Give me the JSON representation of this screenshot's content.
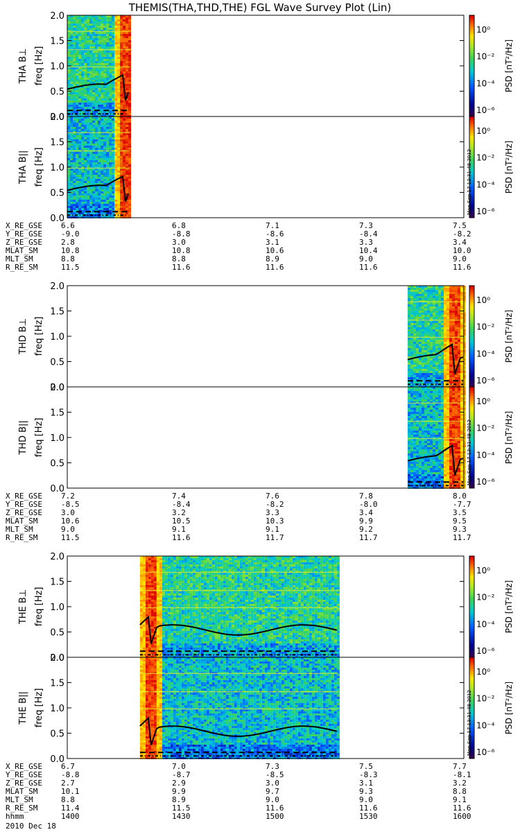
{
  "title": "THEMIS(THA,THD,THE) FGL Wave Survey Plot (Lin)",
  "colorbar": {
    "label": "PSD [nT²/Hz]",
    "ticks": [
      "10⁰",
      "10⁻²",
      "10⁻⁴",
      "10⁻⁶"
    ]
  },
  "stamp": "Mon Sep 17 13:31:48 2012",
  "date_label": "2010 Dec 18",
  "chart_data": [
    {
      "type": "heatmap",
      "probe": "THA",
      "panels": [
        {
          "ylabel": "THA B⊥",
          "unit": "freq [Hz]",
          "yticks": [
            "2.0",
            "1.5",
            "1.0",
            "0.5",
            "0.0"
          ],
          "ylim": [
            0,
            2.0
          ]
        },
        {
          "ylabel": "THA B||",
          "unit": "freq [Hz]",
          "yticks": [
            "2.0",
            "1.5",
            "1.0",
            "0.5",
            "0.0"
          ],
          "ylim": [
            0,
            2.0
          ]
        }
      ],
      "data_time_range_hhmm": [
        "1400",
        "1419"
      ],
      "burst_time_hhmm": "1417",
      "ephemeris": [
        {
          "name": "X_RE_GSE",
          "values": [
            "6.6",
            "6.8",
            "7.1",
            "7.3",
            "7.5"
          ]
        },
        {
          "name": "Y_RE_GSE",
          "values": [
            "-9.0",
            "-8.8",
            "-8.6",
            "-8.4",
            "-8.2"
          ]
        },
        {
          "name": "Z_RE_GSE",
          "values": [
            "2.8",
            "3.0",
            "3.1",
            "3.3",
            "3.4"
          ]
        },
        {
          "name": "MLAT_SM",
          "values": [
            "10.8",
            "10.8",
            "10.6",
            "10.4",
            "10.0"
          ]
        },
        {
          "name": "MLT_SM",
          "values": [
            "8.8",
            "8.8",
            "8.9",
            "9.0",
            "9.0"
          ]
        },
        {
          "name": "R_RE_SM",
          "values": [
            "11.5",
            "11.6",
            "11.6",
            "11.6",
            "11.6"
          ]
        }
      ]
    },
    {
      "type": "heatmap",
      "probe": "THD",
      "panels": [
        {
          "ylabel": "THD B⊥",
          "unit": "freq [Hz]",
          "yticks": [
            "2.0",
            "1.5",
            "1.0",
            "0.5",
            "0.0"
          ],
          "ylim": [
            0,
            2.0
          ]
        },
        {
          "ylabel": "THD B||",
          "unit": "freq [Hz]",
          "yticks": [
            "2.0",
            "1.5",
            "1.0",
            "0.5",
            "0.0"
          ],
          "ylim": [
            0,
            2.0
          ]
        }
      ],
      "data_time_range_hhmm": [
        "1543",
        "1600"
      ],
      "burst_time_hhmm": "1557",
      "ephemeris": [
        {
          "name": "X_RE_GSE",
          "values": [
            "7.2",
            "7.4",
            "7.6",
            "7.8",
            "8.0"
          ]
        },
        {
          "name": "Y_RE_GSE",
          "values": [
            "-8.5",
            "-8.4",
            "-8.2",
            "-8.0",
            "-7.7"
          ]
        },
        {
          "name": "Z_RE_GSE",
          "values": [
            "3.0",
            "3.2",
            "3.3",
            "3.4",
            "3.5"
          ]
        },
        {
          "name": "MLAT_SM",
          "values": [
            "10.6",
            "10.5",
            "10.3",
            "9.9",
            "9.5"
          ]
        },
        {
          "name": "MLT_SM",
          "values": [
            "9.0",
            "9.1",
            "9.1",
            "9.2",
            "9.3"
          ]
        },
        {
          "name": "R_RE_SM",
          "values": [
            "11.5",
            "11.6",
            "11.7",
            "11.7",
            "11.7"
          ]
        }
      ]
    },
    {
      "type": "heatmap",
      "probe": "THE",
      "panels": [
        {
          "ylabel": "THE B⊥",
          "unit": "freq [Hz]",
          "yticks": [
            "2.0",
            "1.5",
            "1.0",
            "0.5",
            "0.0"
          ],
          "ylim": [
            0,
            2.0
          ]
        },
        {
          "ylabel": "THE B||",
          "unit": "freq [Hz]",
          "yticks": [
            "2.0",
            "1.5",
            "1.0",
            "0.5",
            "0.0"
          ],
          "ylim": [
            0,
            2.0
          ]
        }
      ],
      "data_time_range_hhmm": [
        "1422",
        "1522"
      ],
      "burst_time_hhmm": "1425",
      "ephemeris": [
        {
          "name": "X_RE_GSE",
          "values": [
            "6.7",
            "7.0",
            "7.3",
            "7.5",
            "7.7"
          ]
        },
        {
          "name": "Y_RE_GSE",
          "values": [
            "-8.8",
            "-8.7",
            "-8.5",
            "-8.3",
            "-8.1"
          ]
        },
        {
          "name": "Z_RE_GSE",
          "values": [
            "2.7",
            "2.9",
            "3.0",
            "3.1",
            "3.2"
          ]
        },
        {
          "name": "MLAT_SM",
          "values": [
            "10.1",
            "9.9",
            "9.7",
            "9.3",
            "8.8"
          ]
        },
        {
          "name": "MLT_SM",
          "values": [
            "8.8",
            "8.9",
            "9.0",
            "9.0",
            "9.1"
          ]
        },
        {
          "name": "R_RE_SM",
          "values": [
            "11.4",
            "11.5",
            "11.6",
            "11.6",
            "11.6"
          ]
        },
        {
          "name": "hhmm",
          "values": [
            "1400",
            "1430",
            "1500",
            "1530",
            "1600"
          ]
        }
      ]
    }
  ]
}
